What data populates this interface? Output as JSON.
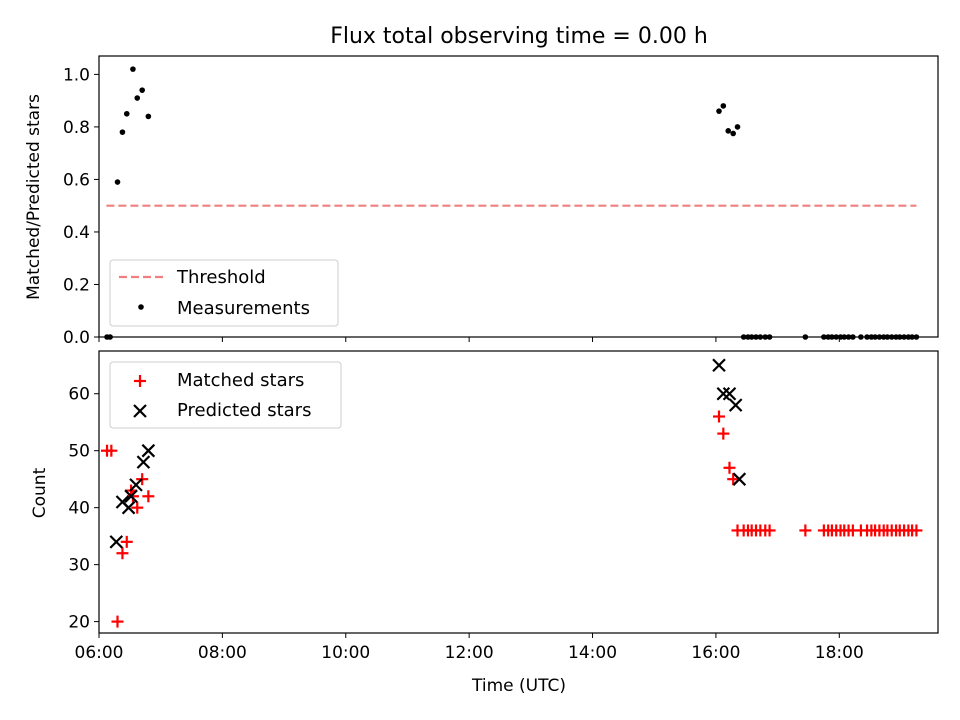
{
  "chart_data": [
    {
      "type": "scatter",
      "title": "Flux total observing time = 0.00 h",
      "xlabel": "",
      "ylabel": "Matched/Predicted stars",
      "xlim": [
        6.0,
        19.6
      ],
      "ylim": [
        0.0,
        1.07
      ],
      "yticks": [
        0.0,
        0.2,
        0.4,
        0.6,
        0.8,
        1.0
      ],
      "ytick_labels": [
        "0.0",
        "0.2",
        "0.4",
        "0.6",
        "0.8",
        "1.0"
      ],
      "xticks": [
        6,
        8,
        10,
        12,
        14,
        16,
        18
      ],
      "grid": false,
      "legend_position": "lower-left",
      "threshold": {
        "name": "Threshold",
        "value": 0.5,
        "x_start": 6.12,
        "x_end": 19.25,
        "color": "#f08080",
        "style": "dashed"
      },
      "series": [
        {
          "name": "Measurements",
          "color": "#000000",
          "marker": "dot",
          "x": [
            6.13,
            6.18,
            6.3,
            6.38,
            6.45,
            6.55,
            6.62,
            6.7,
            6.8,
            16.05,
            16.12,
            16.2,
            16.28,
            16.35,
            16.45,
            16.52,
            16.58,
            16.65,
            16.72,
            16.8,
            16.87,
            17.45,
            17.75,
            17.82,
            17.88,
            17.95,
            18.02,
            18.08,
            18.15,
            18.22,
            18.35,
            18.45,
            18.52,
            18.58,
            18.65,
            18.72,
            18.78,
            18.85,
            18.92,
            18.98,
            19.05,
            19.12,
            19.18,
            19.25
          ],
          "y": [
            0.0,
            0.0,
            0.59,
            0.78,
            0.85,
            1.02,
            0.91,
            0.94,
            0.84,
            0.86,
            0.88,
            0.785,
            0.775,
            0.8,
            0.0,
            0.0,
            0.0,
            0.0,
            0.0,
            0.0,
            0.0,
            0.0,
            0.0,
            0.0,
            0.0,
            0.0,
            0.0,
            0.0,
            0.0,
            0.0,
            0.0,
            0.0,
            0.0,
            0.0,
            0.0,
            0.0,
            0.0,
            0.0,
            0.0,
            0.0,
            0.0,
            0.0,
            0.0,
            0.0
          ]
        }
      ]
    },
    {
      "type": "scatter",
      "title": "",
      "xlabel": "Time (UTC)",
      "ylabel": "Count",
      "xlim": [
        6.0,
        19.6
      ],
      "ylim": [
        18.0,
        67.5
      ],
      "yticks": [
        20,
        30,
        40,
        50,
        60
      ],
      "ytick_labels": [
        "20",
        "30",
        "40",
        "50",
        "60"
      ],
      "xticks": [
        6,
        8,
        10,
        12,
        14,
        16,
        18
      ],
      "xtick_labels": [
        "06:00",
        "08:00",
        "10:00",
        "12:00",
        "14:00",
        "16:00",
        "18:00"
      ],
      "grid": false,
      "legend_position": "upper-left",
      "series": [
        {
          "name": "Matched stars",
          "color": "#ff0000",
          "marker": "plus",
          "x": [
            6.13,
            6.2,
            6.3,
            6.38,
            6.45,
            6.52,
            6.55,
            6.62,
            6.7,
            6.8,
            16.05,
            16.12,
            16.22,
            16.28,
            16.35,
            16.45,
            16.52,
            16.58,
            16.65,
            16.72,
            16.8,
            16.87,
            17.45,
            17.75,
            17.82,
            17.88,
            17.95,
            18.02,
            18.08,
            18.15,
            18.22,
            18.35,
            18.45,
            18.52,
            18.58,
            18.65,
            18.72,
            18.78,
            18.85,
            18.92,
            18.98,
            19.05,
            19.12,
            19.18,
            19.25
          ],
          "y": [
            50,
            50,
            20,
            32,
            34,
            43,
            42,
            40,
            45,
            42,
            56,
            53,
            47,
            45,
            36,
            36,
            36,
            36,
            36,
            36,
            36,
            36,
            36,
            36,
            36,
            36,
            36,
            36,
            36,
            36,
            36,
            36,
            36,
            36,
            36,
            36,
            36,
            36,
            36,
            36,
            36,
            36,
            36,
            36,
            36
          ]
        },
        {
          "name": "Predicted stars",
          "color": "#000000",
          "marker": "x",
          "x": [
            6.28,
            6.38,
            6.48,
            6.52,
            6.6,
            6.72,
            6.8,
            16.05,
            16.12,
            16.22,
            16.32,
            16.38
          ],
          "y": [
            34,
            41,
            40,
            42,
            44,
            48,
            50,
            65,
            60,
            60,
            58,
            45
          ]
        }
      ]
    }
  ]
}
